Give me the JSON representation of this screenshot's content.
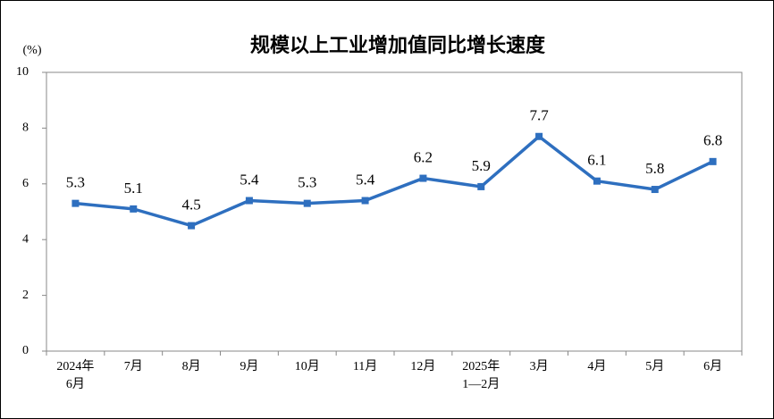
{
  "chart_data": {
    "type": "line",
    "title": "规模以上工业增加值同比增长速度",
    "y_label": "(%)",
    "categories": [
      [
        "2024年",
        "6月"
      ],
      [
        "7月"
      ],
      [
        "8月"
      ],
      [
        "9月"
      ],
      [
        "10月"
      ],
      [
        "11月"
      ],
      [
        "12月"
      ],
      [
        "2025年",
        "1—2月"
      ],
      [
        "3月"
      ],
      [
        "4月"
      ],
      [
        "5月"
      ],
      [
        "6月"
      ]
    ],
    "series": [
      {
        "name": "规模以上工业增加值同比增长速度",
        "color": "#2e6fbf",
        "values": [
          5.3,
          5.1,
          4.5,
          5.4,
          5.3,
          5.4,
          6.2,
          5.9,
          7.7,
          6.1,
          5.8,
          6.8
        ]
      }
    ],
    "ylim": [
      0,
      10
    ],
    "yticks": [
      0,
      2,
      4,
      6,
      8,
      10
    ],
    "grid": false
  }
}
